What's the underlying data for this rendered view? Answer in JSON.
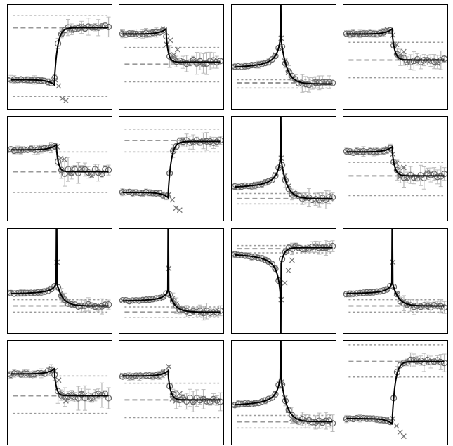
{
  "chart_data": [
    {
      "type": "line",
      "shape": "step-up",
      "ylim": [
        0,
        1
      ],
      "mid": 0.45,
      "low": 0.28,
      "high": 0.78,
      "k": 0.03,
      "asym": 0.5,
      "ref": [
        0.12,
        0.78,
        0.9
      ],
      "cross": [
        0.28,
        0.22,
        0.1,
        0.08
      ],
      "noise": 0.08
    },
    {
      "type": "line",
      "shape": "step-down",
      "ylim": [
        0,
        1
      ],
      "mid": 0.45,
      "low": 0.45,
      "high": 0.72,
      "k": 0.02,
      "asym": 0.0,
      "ref": [
        0.26,
        0.43,
        0.59
      ],
      "cross": [
        0.62,
        0.66,
        0.52,
        0.57
      ],
      "noise": 0.09
    },
    {
      "type": "line",
      "shape": "peak-up",
      "ylim": [
        0,
        1
      ],
      "mid": 0.47,
      "low": 0.24,
      "high": 0.38,
      "k": 0.035,
      "ref": [
        0.2,
        0.25,
        0.28
      ],
      "cross": [
        0.68,
        0.46,
        0.35,
        0.3
      ],
      "noise": 0.07
    },
    {
      "type": "line",
      "shape": "step-down",
      "ylim": [
        0,
        1
      ],
      "mid": 0.47,
      "low": 0.47,
      "high": 0.72,
      "k": 0.025,
      "asym": 0.0,
      "ref": [
        0.3,
        0.47,
        0.64
      ],
      "cross": [
        0.71,
        0.62,
        0.5,
        0.55
      ],
      "noise": 0.08
    },
    {
      "type": "line",
      "shape": "step-down",
      "ylim": [
        0,
        1
      ],
      "mid": 0.47,
      "low": 0.47,
      "high": 0.68,
      "k": 0.02,
      "asym": 0.0,
      "ref": [
        0.27,
        0.47,
        0.66
      ],
      "cross": [
        0.71,
        0.6,
        0.59,
        0.45
      ],
      "noise": 0.1
    },
    {
      "type": "line",
      "shape": "step-up",
      "ylim": [
        0,
        1
      ],
      "mid": 0.47,
      "low": 0.27,
      "high": 0.76,
      "k": 0.03,
      "asym": 0.5,
      "ref": [
        0.66,
        0.77,
        0.88
      ],
      "cross": [
        0.25,
        0.2,
        0.12,
        0.1
      ],
      "noise": 0.07
    },
    {
      "type": "line",
      "shape": "peak-up",
      "ylim": [
        0,
        1
      ],
      "mid": 0.47,
      "low": 0.21,
      "high": 0.3,
      "k": 0.035,
      "ref": [
        0.16,
        0.21,
        0.26
      ],
      "cross": [
        0.6,
        0.43,
        0.33,
        0.25
      ],
      "noise": 0.07
    },
    {
      "type": "line",
      "shape": "step-down",
      "ylim": [
        0,
        1
      ],
      "mid": 0.47,
      "low": 0.43,
      "high": 0.66,
      "k": 0.025,
      "asym": 0.0,
      "ref": [
        0.24,
        0.43,
        0.56
      ],
      "cross": [
        0.64,
        0.55,
        0.42,
        0.51
      ],
      "noise": 0.09
    },
    {
      "type": "line",
      "shape": "peak-up-small",
      "ylim": [
        0,
        1
      ],
      "mid": 0.47,
      "low": 0.26,
      "high": 0.37,
      "k": 0.035,
      "ref": [
        0.2,
        0.26,
        0.32
      ],
      "cross": [
        0.68,
        0.38,
        0.32,
        0.3
      ],
      "noise": 0.06
    },
    {
      "type": "line",
      "shape": "peak-up-small",
      "ylim": [
        0,
        1
      ],
      "mid": 0.47,
      "low": 0.2,
      "high": 0.3,
      "k": 0.035,
      "ref": [
        0.15,
        0.2,
        0.25
      ],
      "cross": [
        0.62,
        0.33,
        0.28,
        0.24
      ],
      "noise": 0.06
    },
    {
      "type": "line",
      "shape": "dip-down",
      "ylim": [
        0,
        1
      ],
      "mid": 0.47,
      "low": 0.62,
      "high": 0.8,
      "k": 0.03,
      "ref": [
        0.77,
        0.81,
        0.84
      ],
      "cross": [
        0.32,
        0.48,
        0.6,
        0.7
      ],
      "noise": 0.06
    },
    {
      "type": "line",
      "shape": "peak-up-small",
      "ylim": [
        0,
        1
      ],
      "mid": 0.47,
      "low": 0.26,
      "high": 0.37,
      "k": 0.035,
      "ref": [
        0.2,
        0.26,
        0.32
      ],
      "cross": [
        0.68,
        0.38,
        0.32,
        0.3
      ],
      "noise": 0.06
    },
    {
      "type": "line",
      "shape": "step-down",
      "ylim": [
        0,
        1
      ],
      "mid": 0.45,
      "low": 0.47,
      "high": 0.68,
      "k": 0.02,
      "asym": 0.0,
      "ref": [
        0.3,
        0.47,
        0.66
      ],
      "cross": [
        0.71,
        0.62,
        0.46,
        0.42
      ],
      "noise": 0.1
    },
    {
      "type": "line",
      "shape": "step-down",
      "ylim": [
        0,
        1
      ],
      "mid": 0.47,
      "low": 0.43,
      "high": 0.66,
      "k": 0.025,
      "asym": 0.0,
      "ref": [
        0.26,
        0.43,
        0.59
      ],
      "cross": [
        0.75,
        0.44,
        0.42,
        0.49
      ],
      "noise": 0.08
    },
    {
      "type": "line",
      "shape": "peak-up",
      "ylim": [
        0,
        1
      ],
      "mid": 0.47,
      "low": 0.22,
      "high": 0.36,
      "k": 0.035,
      "ref": [
        0.16,
        0.22,
        0.28
      ],
      "cross": [
        0.6,
        0.45,
        0.33,
        0.25
      ],
      "noise": 0.07
    },
    {
      "type": "line",
      "shape": "step-up",
      "ylim": [
        0,
        1
      ],
      "mid": 0.47,
      "low": 0.25,
      "high": 0.8,
      "k": 0.03,
      "asym": 0.5,
      "ref": [
        0.65,
        0.8,
        0.96
      ],
      "cross": [
        0.25,
        0.18,
        0.12,
        0.08
      ],
      "noise": 0.07
    }
  ]
}
